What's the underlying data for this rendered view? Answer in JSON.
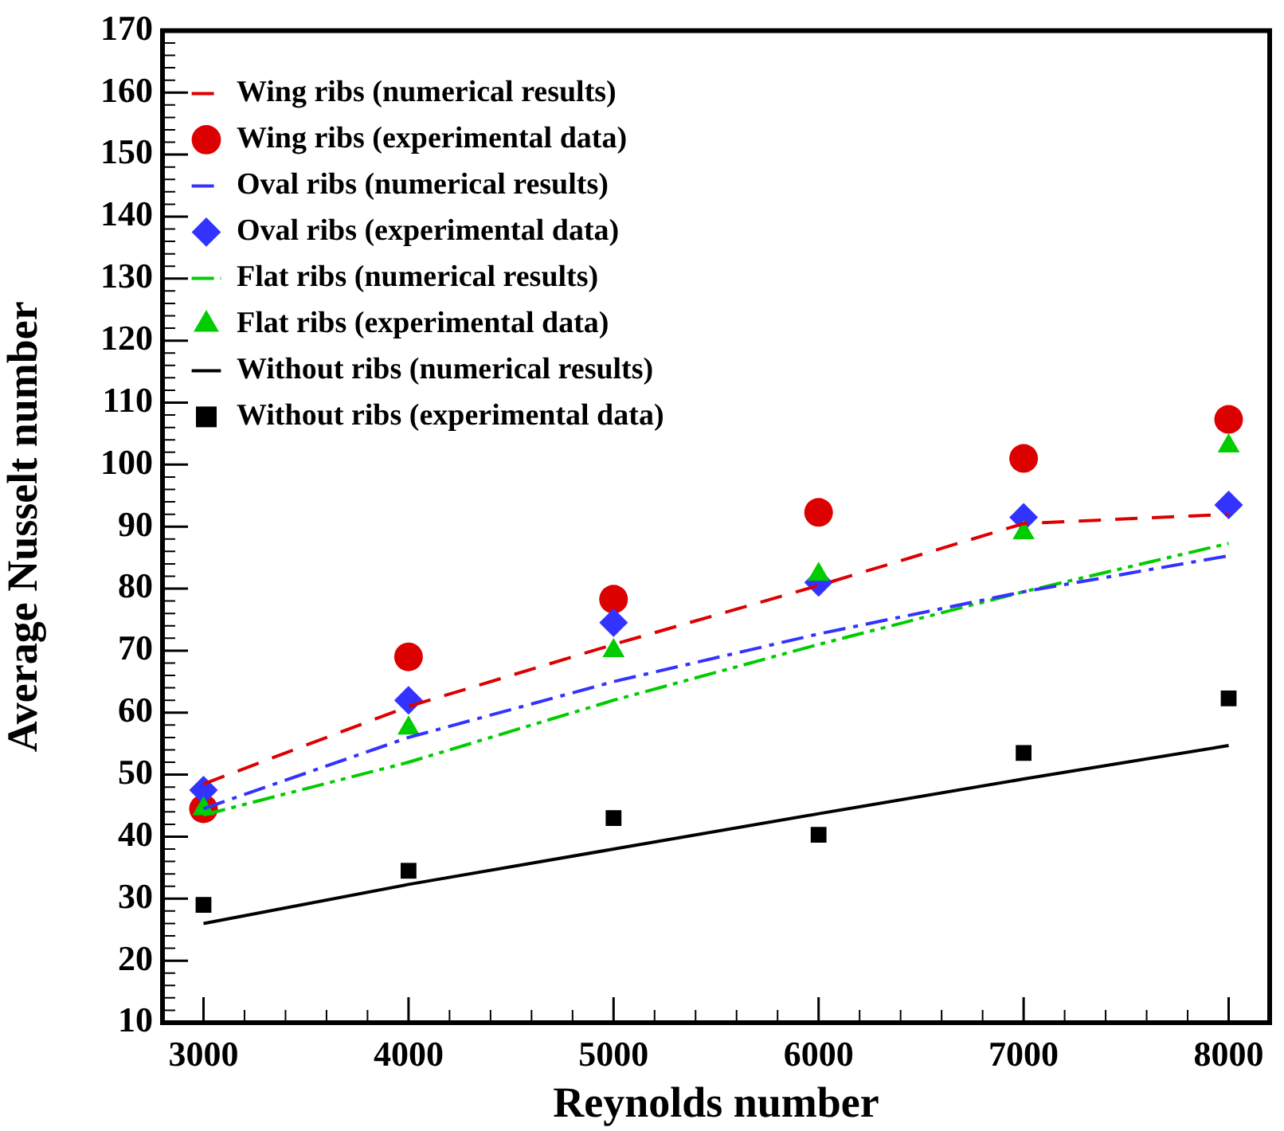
{
  "chart_data": {
    "type": "line",
    "xlabel": "Reynolds number",
    "ylabel": "Average Nusselt number",
    "xlim": [
      2800,
      8200
    ],
    "xticks": [
      3000,
      4000,
      5000,
      6000,
      7000,
      8000
    ],
    "ylim": [
      10,
      170
    ],
    "yticks": [
      10,
      20,
      30,
      40,
      50,
      60,
      70,
      80,
      90,
      100,
      110,
      120,
      130,
      140,
      150,
      160,
      170
    ],
    "x": [
      3000,
      4000,
      5000,
      6000,
      7000,
      8000
    ],
    "grid": false,
    "legend": "top left",
    "series": [
      {
        "name": "Wing ribs (numerical results)",
        "type": "line",
        "color": "#dd0000",
        "line_style": "dashed",
        "marker": "none",
        "values": [
          48.5,
          61,
          71,
          80.5,
          90.5,
          92
        ]
      },
      {
        "name": "Wing ribs (experimental data)",
        "type": "scatter",
        "color": "#dd0000",
        "marker": "circle",
        "values": [
          44.5,
          69,
          78.3,
          92.3,
          101,
          107.3
        ]
      },
      {
        "name": "Oval ribs (numerical results)",
        "type": "line",
        "color": "#3333ff",
        "line_style": "dashdot",
        "marker": "none",
        "values": [
          44.5,
          56,
          65,
          72.7,
          79.5,
          85.3
        ]
      },
      {
        "name": "Oval ribs (experimental data)",
        "type": "scatter",
        "color": "#3333ff",
        "marker": "diamond",
        "values": [
          47.5,
          62,
          74.5,
          81,
          91.5,
          93.5
        ]
      },
      {
        "name": "Flat ribs (numerical results)",
        "type": "line",
        "color": "#00cc00",
        "line_style": "dashdotdot",
        "marker": "none",
        "values": [
          43.5,
          52,
          62,
          71,
          79.5,
          87.3
        ]
      },
      {
        "name": "Flat ribs (experimental data)",
        "type": "scatter",
        "color": "#00cc00",
        "marker": "triangle",
        "values": [
          44.5,
          57.5,
          70,
          82.3,
          89,
          103
        ]
      },
      {
        "name": "Without ribs (numerical results)",
        "type": "line",
        "color": "#000000",
        "line_style": "solid",
        "marker": "none",
        "values": [
          26,
          32.3,
          38,
          43.7,
          49.3,
          54.7
        ]
      },
      {
        "name": "Without ribs (experimental data)",
        "type": "scatter",
        "color": "#000000",
        "marker": "square",
        "values": [
          29,
          34.5,
          43,
          40.3,
          53.5,
          62.3
        ]
      }
    ]
  }
}
